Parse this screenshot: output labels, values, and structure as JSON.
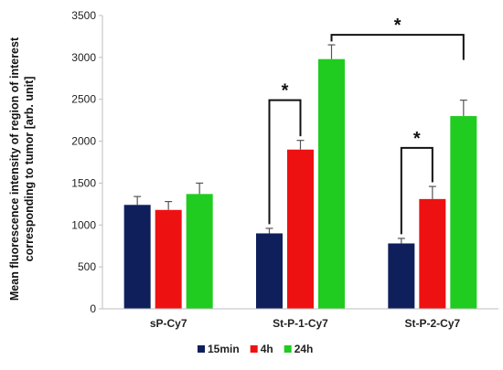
{
  "chart_data": {
    "type": "bar",
    "categories": [
      "sP-Cy7",
      "St-P-1-Cy7",
      "St-P-2-Cy7"
    ],
    "series": [
      {
        "name": "15min",
        "values": [
          1240,
          900,
          780
        ],
        "errors": [
          100,
          60,
          60
        ],
        "color": "#0f1f5c"
      },
      {
        "name": "4h",
        "values": [
          1180,
          1900,
          1310
        ],
        "errors": [
          100,
          110,
          150
        ],
        "color": "#ee1111"
      },
      {
        "name": "24h",
        "values": [
          1370,
          2980,
          2300
        ],
        "errors": [
          130,
          170,
          190
        ],
        "color": "#1fcc1f"
      }
    ],
    "ylabel_lines": [
      "Mean fluorescence intensity of region of interest",
      "corresponding to tumor [arb. unit]"
    ],
    "ylim": [
      0,
      3500
    ],
    "yticks": [
      0,
      500,
      1000,
      1500,
      2000,
      2500,
      3000,
      3500
    ],
    "grid": false,
    "legend_position": "bottom",
    "significance": [
      {
        "label": "*",
        "category": 1,
        "from_series": 0,
        "to_series": 1,
        "level": 2490
      },
      {
        "label": "*",
        "category": 2,
        "from_series": 0,
        "to_series": 1,
        "level": 1920
      },
      {
        "label": "*",
        "from_category": 1,
        "to_category": 2,
        "series": 2,
        "level": 3270
      }
    ]
  }
}
